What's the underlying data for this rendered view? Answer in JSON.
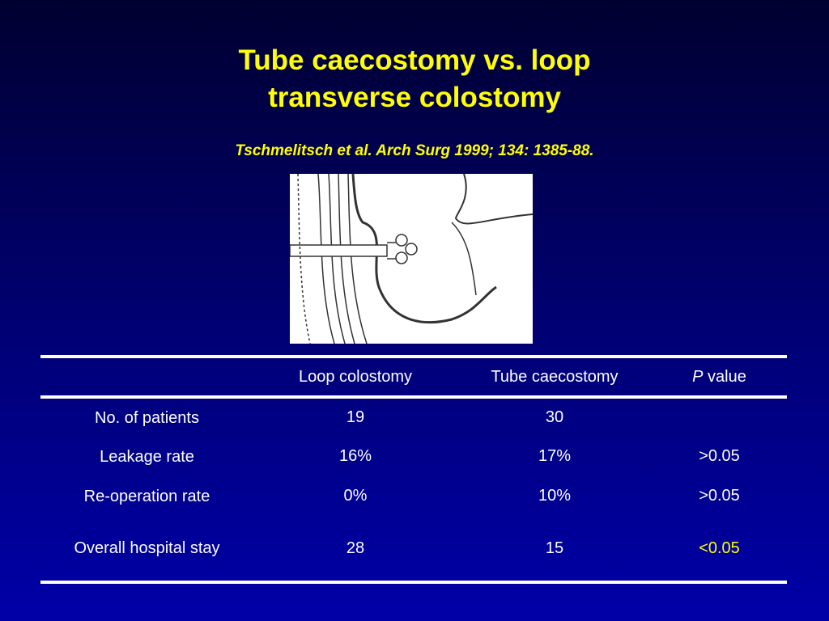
{
  "title": "Tube caecostomy vs. loop transverse colostomy",
  "citation": "Tschmelitsch et al. Arch Surg 1999; 134: 1385-88.",
  "table": {
    "columns": [
      "Loop colostomy",
      "Tube caecostomy"
    ],
    "p_value_header": {
      "symbol": "P",
      "label": "value"
    },
    "rows": [
      {
        "label": "No. of patients",
        "cells": [
          "19",
          "30"
        ]
      },
      {
        "label": "Leakage rate",
        "cells": [
          "16%",
          "17%"
        ],
        "p_value": ">0.05"
      },
      {
        "label": "Re-operation rate",
        "cells": [
          "0%",
          "10%"
        ],
        "p_value": ">0.05"
      },
      {
        "label": "Overall hospital stay",
        "cells": [
          "28",
          "15"
        ],
        "p_value": "<0.05",
        "p_value_highlight": true
      }
    ]
  }
}
